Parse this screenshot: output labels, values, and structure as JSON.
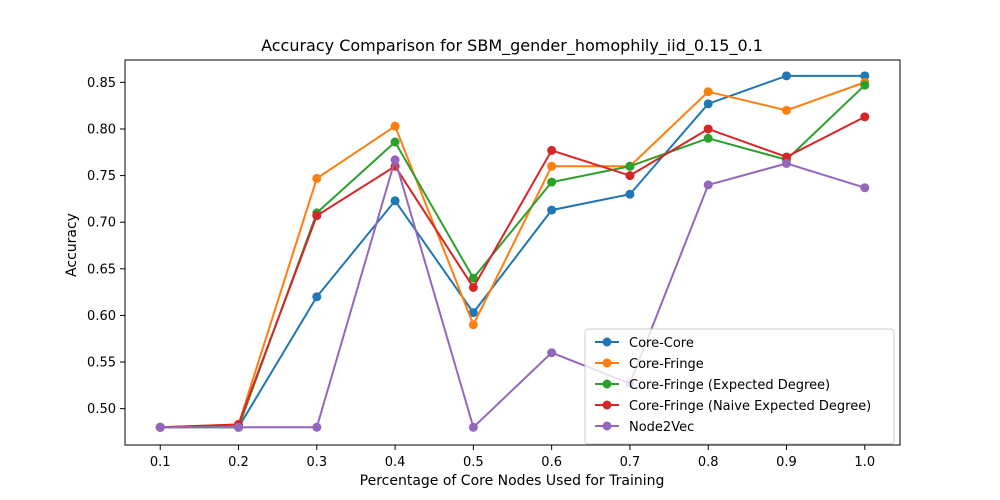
{
  "chart_data": {
    "type": "line",
    "title": "Accuracy Comparison for SBM_gender_homophily_iid_0.15_0.1",
    "xlabel": "Percentage of Core Nodes Used for Training",
    "ylabel": "Accuracy",
    "x": [
      0.1,
      0.2,
      0.3,
      0.4,
      0.5,
      0.6,
      0.7,
      0.8,
      0.9,
      1.0
    ],
    "x_tick_labels": [
      "0.1",
      "0.2",
      "0.3",
      "0.4",
      "0.5",
      "0.6",
      "0.7",
      "0.8",
      "0.9",
      "1.0"
    ],
    "y_ticks": [
      0.5,
      0.55,
      0.6,
      0.65,
      0.7,
      0.75,
      0.8,
      0.85
    ],
    "y_tick_labels": [
      "0.50",
      "0.55",
      "0.60",
      "0.65",
      "0.70",
      "0.75",
      "0.80",
      "0.85"
    ],
    "xlim": [
      0.055,
      1.045
    ],
    "ylim": [
      0.461,
      0.874
    ],
    "grid": false,
    "legend_position": "lower-right",
    "series": [
      {
        "name": "Core-Core",
        "color": "#1f77b4",
        "values": [
          0.48,
          0.48,
          0.62,
          0.723,
          0.603,
          0.713,
          0.73,
          0.827,
          0.857,
          0.857
        ]
      },
      {
        "name": "Core-Fringe",
        "color": "#ff7f0e",
        "values": [
          0.48,
          0.483,
          0.747,
          0.803,
          0.59,
          0.76,
          0.76,
          0.84,
          0.82,
          0.85
        ]
      },
      {
        "name": "Core-Fringe (Expected Degree)",
        "color": "#2ca02c",
        "values": [
          0.48,
          0.48,
          0.71,
          0.786,
          0.64,
          0.743,
          0.76,
          0.79,
          0.767,
          0.847
        ]
      },
      {
        "name": "Core-Fringe (Naive Expected Degree)",
        "color": "#d62728",
        "values": [
          0.48,
          0.483,
          0.707,
          0.76,
          0.63,
          0.777,
          0.75,
          0.8,
          0.77,
          0.813
        ]
      },
      {
        "name": "Node2Vec",
        "color": "#9467bd",
        "values": [
          0.48,
          0.48,
          0.48,
          0.767,
          0.48,
          0.56,
          0.527,
          0.74,
          0.763,
          0.737
        ]
      }
    ]
  }
}
